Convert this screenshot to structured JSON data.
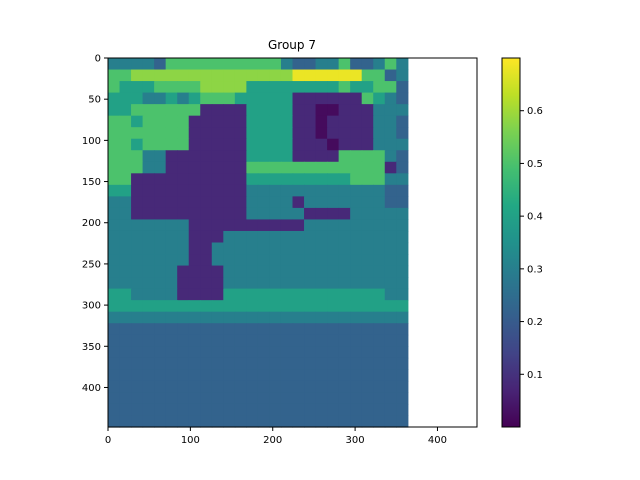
{
  "chart_data": {
    "type": "heatmap",
    "title": "Group 7",
    "xlabel": "",
    "ylabel": "",
    "colormap": "viridis",
    "x_range": [
      0,
      448
    ],
    "y_range": [
      448,
      0
    ],
    "x_ticks": [
      0,
      100,
      200,
      300,
      400
    ],
    "y_ticks": [
      0,
      50,
      100,
      150,
      200,
      250,
      300,
      350,
      400
    ],
    "colorbar": {
      "range": [
        0.0,
        0.7
      ],
      "ticks": [
        "0.1",
        "0.2",
        "0.3",
        "0.4",
        "0.5",
        "0.6"
      ],
      "tick_values": [
        0.1,
        0.2,
        0.3,
        0.4,
        0.5,
        0.6
      ]
    },
    "grid": false,
    "cell_size": 14,
    "rows": [
      "33332555555555532233522353",
      "55666666666666667777775523",
      "54445555666644444444544552",
      "44433434555444441111115432",
      "44555555111144441100111333",
      "55455551111144441101111332",
      "55555551111144441101111332",
      "55455551111144441110111333",
      "55533111111144441111555532",
      "55533111111155555555555512",
      "55111111111144444444455533",
      "44111111111133333333333322",
      "33111111111133331333333322",
      "33111111111133333111133333",
      "33333331111111111333333333",
      "33333331113333333333333333",
      "33333331133333333333333333",
      "33333331133333333333333333",
      "33333311113333333333333333",
      "33333311113333333333333333",
      "44333311114444444444444433",
      "44444444444444444444444444",
      "33333333333333333333333333",
      "22222222222222222222222222",
      "22222222222222222222222222",
      "22222222222222222222222222",
      "22222222222222222222222222",
      "22222222222222222222222222",
      "22222222222222222222222222",
      "22222222222222222222222222",
      "22222222222222222222222222",
      "22222222222222222222222222"
    ],
    "level_values": [
      0.02,
      0.08,
      0.22,
      0.3,
      0.4,
      0.5,
      0.58,
      0.68
    ]
  }
}
